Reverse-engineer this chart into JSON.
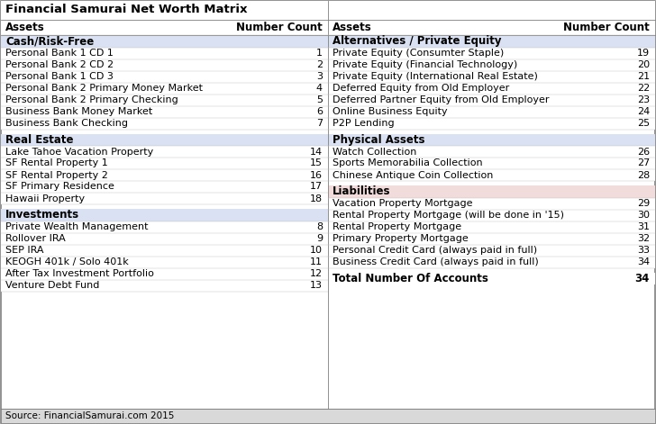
{
  "title": "Financial Samurai Net Worth Matrix",
  "source": "Source: FinancialSamurai.com 2015",
  "col_headers": [
    "Assets",
    "Number Count"
  ],
  "sections_left": [
    {
      "header": "Cash/Risk-Free",
      "header_bg": "#d9e1f2",
      "items": [
        [
          "Personal Bank 1 CD 1",
          "1"
        ],
        [
          "Personal Bank 2 CD 2",
          "2"
        ],
        [
          "Personal Bank 1 CD 3",
          "3"
        ],
        [
          "Personal Bank 2 Primary Money Market",
          "4"
        ],
        [
          "Personal Bank 2 Primary Checking",
          "5"
        ],
        [
          "Business Bank Money Market",
          "6"
        ],
        [
          "Business Bank Checking",
          "7"
        ]
      ]
    },
    {
      "header": "Real Estate",
      "header_bg": "#d9e1f2",
      "spacer_before": true,
      "items": [
        [
          "Lake Tahoe Vacation Property",
          "14"
        ],
        [
          "SF Rental Property 1",
          "15"
        ],
        [
          "SF Rental Property 2",
          "16"
        ],
        [
          "SF Primary Residence",
          "17"
        ],
        [
          "Hawaii Property",
          "18"
        ]
      ]
    },
    {
      "header": "Investments",
      "header_bg": "#d9e1f2",
      "spacer_before": true,
      "items": [
        [
          "Private Wealth Management",
          "8"
        ],
        [
          "Rollover IRA",
          "9"
        ],
        [
          "SEP IRA",
          "10"
        ],
        [
          "KEOGH 401k / Solo 401k",
          "11"
        ],
        [
          "After Tax Investment Portfolio",
          "12"
        ],
        [
          "Venture Debt Fund",
          "13"
        ]
      ]
    }
  ],
  "sections_right": [
    {
      "header": "Alternatives / Private Equity",
      "header_bg": "#d9e1f2",
      "items": [
        [
          "Private Equity (Consumter Staple)",
          "19"
        ],
        [
          "Private Equity (Financial Technology)",
          "20"
        ],
        [
          "Private Equity (International Real Estate)",
          "21"
        ],
        [
          "Deferred Equity from Old Employer",
          "22"
        ],
        [
          "Deferred Partner Equity from Old Employer",
          "23"
        ],
        [
          "Online Business Equity",
          "24"
        ],
        [
          "P2P Lending",
          "25"
        ]
      ]
    },
    {
      "header": "Physical Assets",
      "header_bg": "#d9e1f2",
      "spacer_before": true,
      "items": [
        [
          "Watch Collection",
          "26"
        ],
        [
          "Sports Memorabilia Collection",
          "27"
        ],
        [
          "Chinese Antique Coin Collection",
          "28"
        ]
      ]
    },
    {
      "header": "Liabilities",
      "header_bg": "#f2dcdb",
      "spacer_before": true,
      "items": [
        [
          "Vacation Property Mortgage",
          "29"
        ],
        [
          "Rental Property Mortgage (will be done in '15)",
          "30"
        ],
        [
          "Rental Property Mortgage",
          "31"
        ],
        [
          "Primary Property Mortgage",
          "32"
        ],
        [
          "Personal Credit Card (always paid in full)",
          "33"
        ],
        [
          "Business Credit Card (always paid in full)",
          "34"
        ]
      ]
    }
  ],
  "total_row": [
    "Total Number Of Accounts",
    "34"
  ],
  "bg_color": "#ffffff",
  "border_color": "#7f7f7f",
  "title_fontsize": 9.5,
  "col_header_fontsize": 8.5,
  "section_header_fontsize": 8.5,
  "item_fontsize": 8.0,
  "total_fontsize": 8.5
}
